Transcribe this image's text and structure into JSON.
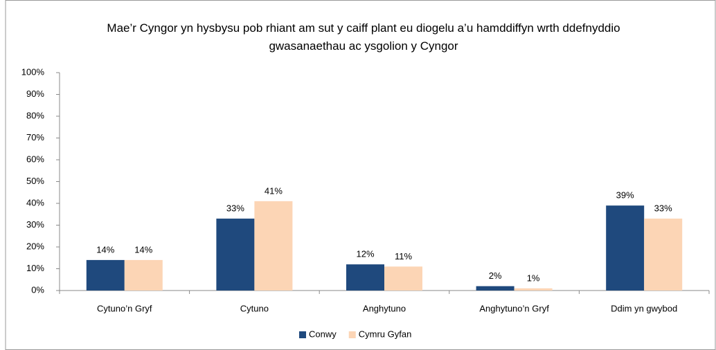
{
  "chart_data": {
    "type": "bar",
    "title": "Mae’r Cyngor yn hysbysu pob rhiant am sut y caiff plant eu diogelu a’u hamddiffyn wrth ddefnyddio gwasanaethau ac ysgolion y Cyngor",
    "categories": [
      "Cytuno’n Gryf",
      "Cytuno",
      "Anghytuno",
      "Anghytuno’n Gryf",
      "Ddim yn gwybod"
    ],
    "series": [
      {
        "name": "Conwy",
        "color": "#1f497d",
        "values": [
          14,
          33,
          12,
          2,
          39
        ],
        "value_labels": [
          "14%",
          "33%",
          "12%",
          "2%",
          "39%"
        ]
      },
      {
        "name": "Cymru Gyfan",
        "color": "#fcd5b5",
        "values": [
          14,
          41,
          11,
          1,
          33
        ],
        "value_labels": [
          "14%",
          "41%",
          "11%",
          "1%",
          "33%"
        ]
      }
    ],
    "ylim": [
      0,
      100
    ],
    "yticks": [
      {
        "value": 0,
        "label": "0%"
      },
      {
        "value": 10,
        "label": "10%"
      },
      {
        "value": 20,
        "label": "20%"
      },
      {
        "value": 30,
        "label": "30%"
      },
      {
        "value": 40,
        "label": "40%"
      },
      {
        "value": 50,
        "label": "50%"
      },
      {
        "value": 60,
        "label": "60%"
      },
      {
        "value": 70,
        "label": "70%"
      },
      {
        "value": 80,
        "label": "80%"
      },
      {
        "value": 90,
        "label": "90%"
      },
      {
        "value": 100,
        "label": "100%"
      }
    ],
    "legend": "bottom"
  }
}
